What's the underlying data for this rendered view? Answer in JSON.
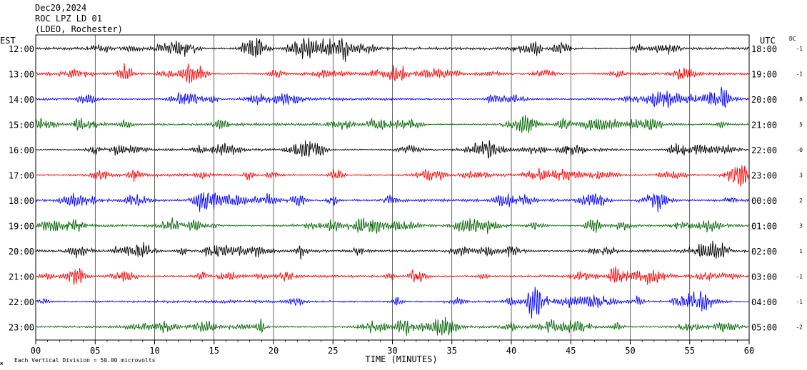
{
  "header": {
    "date": "Dec20,2024",
    "station": "ROC LPZ LD 01",
    "network": "(LDEO, Rochester)"
  },
  "labels": {
    "left_zone": "EST",
    "right_zone": "UTC",
    "dc_header": "DC",
    "footer_note": "Each Vertical Division =   50.00 microvolts",
    "footer_mark": "ж"
  },
  "chart_data": {
    "type": "line",
    "title": "",
    "xlabel": "TIME (MINUTES)",
    "ylabel": "",
    "xlim": [
      0,
      60
    ],
    "x_ticks": [
      "00",
      "05",
      "10",
      "15",
      "20",
      "25",
      "30",
      "35",
      "40",
      "45",
      "50",
      "55",
      "60"
    ],
    "grid": true,
    "trace_colors": [
      "#000000",
      "#ff0000",
      "#0000ff",
      "#006400"
    ],
    "rows": [
      {
        "local": "12:00",
        "utc": "18:00",
        "dc": "-1"
      },
      {
        "local": "13:00",
        "utc": "19:00",
        "dc": "-1"
      },
      {
        "local": "14:00",
        "utc": "20:00",
        "dc": "8"
      },
      {
        "local": "15:00",
        "utc": "21:00",
        "dc": "5"
      },
      {
        "local": "16:00",
        "utc": "22:00",
        "dc": "-0"
      },
      {
        "local": "17:00",
        "utc": "23:00",
        "dc": "3"
      },
      {
        "local": "18:00",
        "utc": "00:00",
        "dc": "2"
      },
      {
        "local": "19:00",
        "utc": "01:00",
        "dc": "3"
      },
      {
        "local": "20:00",
        "utc": "02:00",
        "dc": "1"
      },
      {
        "local": "21:00",
        "utc": "03:00",
        "dc": "-1"
      },
      {
        "local": "22:00",
        "utc": "04:00",
        "dc": "-1"
      },
      {
        "local": "23:00",
        "utc": "05:00",
        "dc": "-2"
      }
    ]
  }
}
